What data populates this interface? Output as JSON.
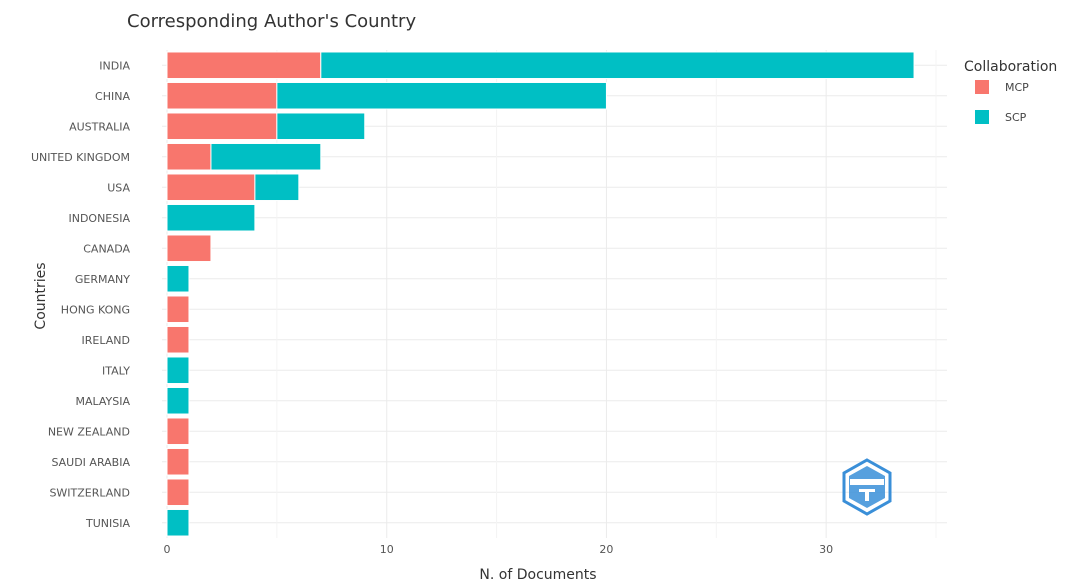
{
  "chart_data": {
    "type": "bar",
    "orientation": "horizontal",
    "stacked": true,
    "title": "Corresponding Author's Country",
    "xlabel": "N. of Documents",
    "ylabel": "Countries",
    "xlim": [
      0,
      35.5
    ],
    "xticks": [
      0,
      10,
      20,
      30
    ],
    "grid": true,
    "legend_title": "Collaboration",
    "legend_position": "top-right",
    "categories": [
      "INDIA",
      "CHINA",
      "AUSTRALIA",
      "UNITED KINGDOM",
      "USA",
      "INDONESIA",
      "CANADA",
      "GERMANY",
      "HONG KONG",
      "IRELAND",
      "ITALY",
      "MALAYSIA",
      "NEW ZEALAND",
      "SAUDI ARABIA",
      "SWITZERLAND",
      "TUNISIA"
    ],
    "series": [
      {
        "name": "MCP",
        "color": "#F8766D",
        "values": [
          7,
          5,
          5,
          2,
          4,
          0,
          2,
          0,
          1,
          1,
          0,
          0,
          1,
          1,
          1,
          0
        ]
      },
      {
        "name": "SCP",
        "color": "#00BFC4",
        "values": [
          27,
          15,
          4,
          5,
          2,
          4,
          0,
          1,
          0,
          0,
          1,
          1,
          0,
          0,
          0,
          1
        ]
      }
    ]
  },
  "watermark": {
    "icon": "shield-logo-icon",
    "color": "#3a8fd8"
  }
}
